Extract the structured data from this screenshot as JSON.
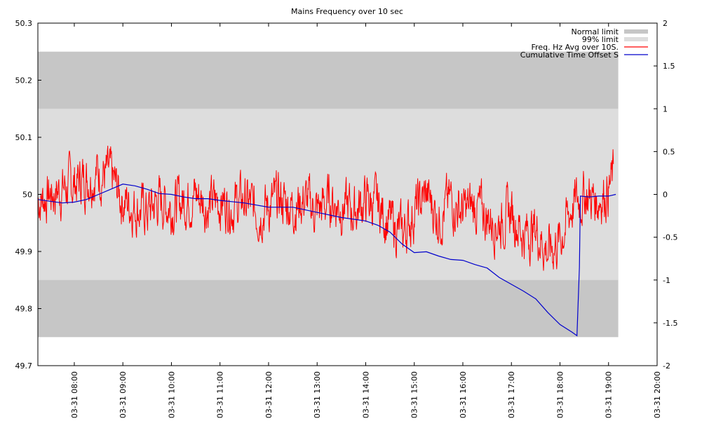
{
  "chart_data": {
    "type": "line",
    "title": "Mains Frequency over 10 sec",
    "x_axis": {
      "range": [
        "03-31 07:15",
        "03-31 20:00"
      ],
      "tick_labels": [
        "03-31 08:00",
        "03-31 09:00",
        "03-31 10:00",
        "03-31 11:00",
        "03-31 12:00",
        "03-31 13:00",
        "03-31 14:00",
        "03-31 15:00",
        "03-31 16:00",
        "03-31 17:00",
        "03-31 18:00",
        "03-31 19:00",
        "03-31 20:00"
      ],
      "tick_hours": [
        8,
        9,
        10,
        11,
        12,
        13,
        14,
        15,
        16,
        17,
        18,
        19,
        20
      ]
    },
    "y_axis_left": {
      "range": [
        49.7,
        50.3
      ],
      "ticks": [
        "49.7",
        "49.8",
        "49.9",
        "50",
        "50.1",
        "50.2",
        "50.3"
      ]
    },
    "y_axis_right": {
      "range": [
        -2,
        2
      ],
      "ticks": [
        "-2",
        "-1.5",
        "-1",
        "-0.5",
        "0",
        "0.5",
        "1",
        "1.5",
        "2"
      ]
    },
    "bands": [
      {
        "name": "Normal limit",
        "y_range": [
          49.75,
          50.25
        ],
        "color": "#c6c6c6",
        "x_range_hours": [
          7.25,
          19.2
        ]
      },
      {
        "name": "99% limit",
        "y_range": [
          49.85,
          50.15
        ],
        "color": "#dddddd",
        "x_range_hours": [
          7.25,
          19.2
        ]
      }
    ],
    "series": [
      {
        "name": "Freq. Hz  Avg over 10S.",
        "axis": "left",
        "color": "#ff0000",
        "x_hours": [
          7.25,
          7.5,
          7.75,
          8.0,
          8.25,
          8.5,
          8.75,
          9.0,
          9.25,
          9.5,
          9.75,
          10.0,
          10.25,
          10.5,
          10.75,
          11.0,
          11.25,
          11.5,
          11.75,
          12.0,
          12.25,
          12.5,
          12.75,
          13.0,
          13.25,
          13.5,
          13.75,
          14.0,
          14.25,
          14.5,
          14.75,
          15.0,
          15.25,
          15.5,
          15.75,
          16.0,
          16.25,
          16.5,
          16.75,
          17.0,
          17.25,
          17.5,
          17.75,
          18.0,
          18.25,
          18.5,
          18.75,
          19.0,
          19.1
        ],
        "values": [
          49.99,
          50.0,
          50.01,
          50.02,
          50.03,
          50.04,
          50.03,
          49.99,
          49.98,
          49.97,
          49.99,
          49.98,
          49.99,
          50.0,
          49.98,
          49.99,
          49.98,
          49.99,
          49.97,
          49.98,
          49.99,
          49.98,
          49.99,
          49.97,
          49.99,
          49.98,
          49.97,
          49.99,
          49.98,
          49.95,
          49.93,
          49.97,
          50.0,
          49.96,
          49.99,
          49.97,
          49.98,
          49.96,
          49.95,
          49.97,
          49.93,
          49.94,
          49.9,
          49.92,
          49.98,
          50.0,
          49.99,
          50.01,
          50.03
        ],
        "noise_amplitude": 0.035,
        "noise_seed": 7
      },
      {
        "name": "Cumulative Time Offset S",
        "axis": "right",
        "color": "#0000cc",
        "x_hours": [
          7.25,
          7.5,
          7.75,
          8.0,
          8.25,
          8.5,
          8.75,
          9.0,
          9.25,
          9.5,
          9.75,
          10.0,
          10.25,
          10.5,
          10.75,
          11.0,
          11.5,
          12.0,
          12.5,
          13.0,
          13.5,
          14.0,
          14.25,
          14.5,
          14.75,
          15.0,
          15.25,
          15.5,
          15.75,
          16.0,
          16.25,
          16.5,
          16.75,
          17.0,
          17.25,
          17.5,
          17.75,
          18.0,
          18.25,
          18.35,
          18.4,
          18.42,
          18.6,
          18.8,
          19.0,
          19.15
        ],
        "values": [
          -0.06,
          -0.08,
          -0.1,
          -0.09,
          -0.06,
          0.0,
          0.06,
          0.12,
          0.1,
          0.06,
          0.01,
          0.0,
          -0.03,
          -0.05,
          -0.05,
          -0.07,
          -0.1,
          -0.15,
          -0.15,
          -0.21,
          -0.27,
          -0.31,
          -0.36,
          -0.44,
          -0.58,
          -0.68,
          -0.67,
          -0.72,
          -0.76,
          -0.77,
          -0.82,
          -0.86,
          -0.97,
          -1.05,
          -1.13,
          -1.22,
          -1.38,
          -1.52,
          -1.61,
          -1.65,
          -0.85,
          -0.02,
          -0.03,
          -0.02,
          -0.02,
          0.0
        ]
      }
    ],
    "legend": {
      "position": "top-right",
      "entries": [
        "Normal limit",
        "99% limit",
        "Freq. Hz  Avg over 10S.",
        "Cumulative Time Offset S"
      ]
    },
    "grid": false
  }
}
